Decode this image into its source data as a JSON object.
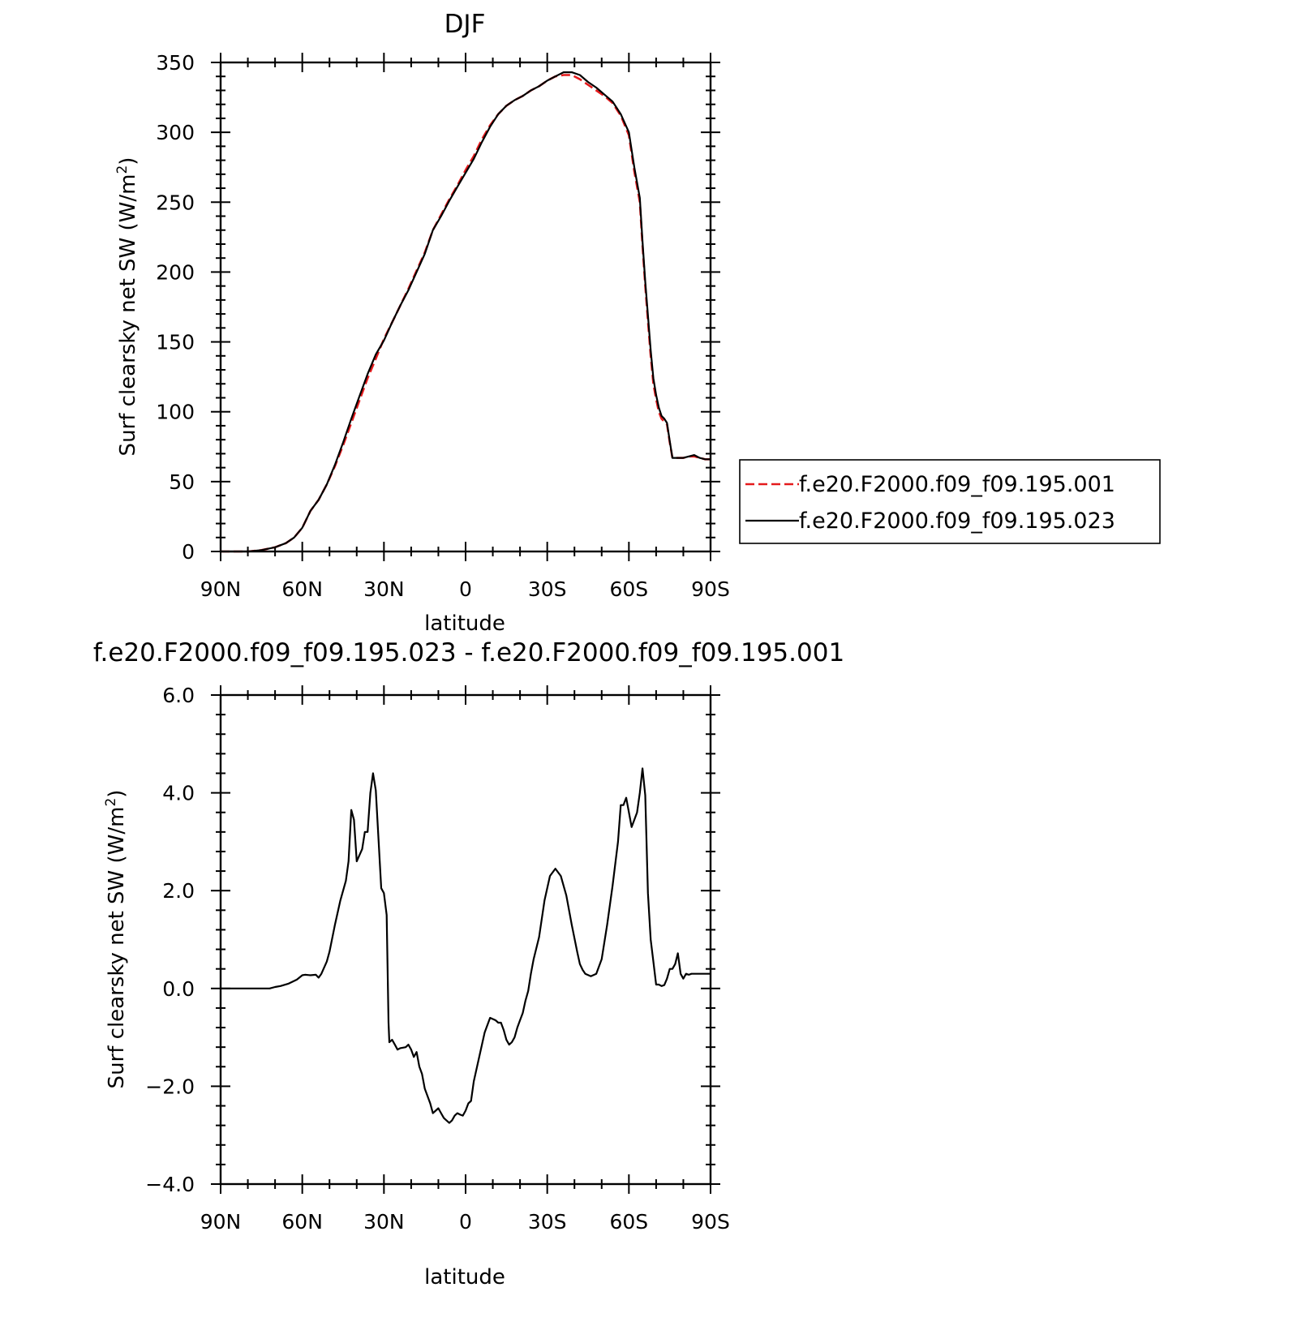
{
  "chart_data": [
    {
      "type": "line",
      "title": "DJF",
      "xlabel": "latitude",
      "ylabel": "Surf clearsky net SW (W/m",
      "ylabel_sup": "2",
      "ylabel_close": ")",
      "xlim": [
        90,
        -90
      ],
      "ylim": [
        0,
        350
      ],
      "xticks": [
        90,
        60,
        30,
        0,
        -30,
        -60,
        -90
      ],
      "xtick_labels": [
        "90N",
        "60N",
        "30N",
        "0",
        "30S",
        "60S",
        "90S"
      ],
      "yticks": [
        0,
        50,
        100,
        150,
        200,
        250,
        300,
        350
      ],
      "ytick_labels": [
        "0",
        "50",
        "100",
        "150",
        "200",
        "250",
        "300",
        "350"
      ],
      "legend": {
        "placement": "right"
      },
      "series": [
        {
          "name": "f.e20.F2000.f09_f09.195.001",
          "color": "#e41a1c",
          "dash": "dashed",
          "x": [
            90,
            80,
            75,
            70,
            66,
            63,
            60,
            57,
            54,
            51,
            48,
            45,
            42,
            39,
            36,
            33,
            30,
            27,
            24,
            21,
            18,
            15,
            12,
            9,
            6,
            3,
            0,
            -3,
            -6,
            -9,
            -12,
            -15,
            -18,
            -21,
            -24,
            -27,
            -30,
            -33,
            -36,
            -39,
            -42,
            -45,
            -48,
            -51,
            -54,
            -57,
            -60,
            -62,
            -64,
            -65,
            -66,
            -67,
            -68,
            -69,
            -70,
            -71,
            -72,
            -73,
            -74,
            -75,
            -76,
            -77,
            -78,
            -79,
            -80,
            -82,
            -84,
            -86,
            -88,
            -90
          ],
          "values": [
            0,
            0,
            1,
            3,
            6,
            10,
            17,
            29,
            37,
            48,
            61,
            76,
            92,
            108,
            124,
            138,
            152,
            164,
            176,
            188,
            201,
            214,
            230,
            241,
            252,
            262,
            273,
            283,
            295,
            305,
            313,
            319,
            323,
            326,
            330,
            333,
            337,
            340,
            341,
            341,
            338,
            334,
            330,
            326,
            321,
            312,
            298,
            272,
            250,
            219,
            190,
            165,
            140,
            120,
            109,
            100,
            95,
            93,
            91,
            78,
            67,
            67,
            67,
            67,
            67,
            68,
            68,
            67,
            66,
            66
          ]
        },
        {
          "name": "f.e20.F2000.f09_f09.195.023",
          "color": "#000000",
          "dash": "solid",
          "x": [
            90,
            80,
            75,
            70,
            66,
            63,
            60,
            57,
            54,
            51,
            48,
            45,
            42,
            39,
            36,
            33,
            30,
            27,
            24,
            21,
            18,
            15,
            12,
            9,
            6,
            3,
            0,
            -3,
            -6,
            -9,
            -12,
            -15,
            -18,
            -21,
            -24,
            -27,
            -30,
            -33,
            -36,
            -39,
            -42,
            -45,
            -48,
            -51,
            -54,
            -57,
            -60,
            -62,
            -64,
            -65,
            -66,
            -67,
            -68,
            -69,
            -70,
            -71,
            -72,
            -73,
            -74,
            -75,
            -76,
            -77,
            -78,
            -79,
            -80,
            -82,
            -84,
            -86,
            -88,
            -90
          ],
          "values": [
            0,
            0,
            1,
            3,
            6,
            10,
            17,
            29,
            37,
            48,
            62,
            78,
            95,
            111,
            127,
            141,
            151,
            164,
            176,
            187,
            200,
            213,
            230,
            240,
            251,
            261,
            271,
            281,
            293,
            304,
            313,
            319,
            323,
            326,
            330,
            333,
            337,
            340,
            343,
            343,
            341,
            336,
            332,
            327,
            322,
            313,
            300,
            275,
            253,
            222,
            193,
            169,
            144,
            124,
            112,
            103,
            97,
            95,
            92,
            79,
            67,
            67,
            67,
            67,
            67,
            68,
            69,
            67,
            66,
            66
          ]
        }
      ]
    },
    {
      "type": "line",
      "title": "f.e20.F2000.f09_f09.195.023 - f.e20.F2000.f09_f09.195.001",
      "xlabel": "latitude",
      "ylabel": "Surf clearsky net SW (W/m",
      "ylabel_sup": "2",
      "ylabel_close": ")",
      "xlim": [
        90,
        -90
      ],
      "ylim": [
        -4.0,
        6.0
      ],
      "xticks": [
        90,
        60,
        30,
        0,
        -30,
        -60,
        -90
      ],
      "xtick_labels": [
        "90N",
        "60N",
        "30N",
        "0",
        "30S",
        "60S",
        "90S"
      ],
      "yticks": [
        -4.0,
        -2.0,
        0.0,
        2.0,
        4.0,
        6.0
      ],
      "ytick_labels": [
        "−4.0",
        "−2.0",
        "0.0",
        "2.0",
        "4.0",
        "6.0"
      ],
      "series": [
        {
          "color": "#000000",
          "dash": "solid",
          "x": [
            90,
            80,
            72,
            70,
            68,
            65,
            62,
            60,
            59,
            57,
            55,
            54,
            53,
            51,
            50,
            48,
            46,
            44,
            43,
            42,
            41,
            40,
            38,
            37,
            36,
            35,
            34,
            33,
            31,
            30,
            29,
            28.3,
            28,
            27,
            26,
            25,
            24,
            22,
            21,
            20,
            19,
            18,
            17,
            16,
            15,
            13,
            12,
            11,
            10,
            9,
            8,
            7,
            6,
            5,
            4,
            3,
            2,
            1,
            0,
            -1,
            -2,
            -3,
            -5,
            -7,
            -9,
            -11,
            -12,
            -13,
            -14,
            -15,
            -16,
            -17,
            -18,
            -19,
            -20,
            -21,
            -22,
            -23,
            -24,
            -25,
            -27,
            -29,
            -31,
            -33,
            -35,
            -37,
            -39,
            -41,
            -42,
            -43,
            -44,
            -46,
            -48,
            -50,
            -52,
            -54,
            -56,
            -57,
            -58,
            -59,
            -61,
            -63,
            -64,
            -65,
            -66,
            -67,
            -68,
            -69,
            -70,
            -71,
            -72,
            -73,
            -74,
            -75,
            -76,
            -77,
            -78,
            -79,
            -80,
            -81,
            -82,
            -83,
            -84,
            -85,
            -86,
            -87,
            -88,
            -89,
            -90
          ],
          "values": [
            0,
            0,
            0,
            0.03,
            0.05,
            0.1,
            0.18,
            0.27,
            0.28,
            0.27,
            0.28,
            0.22,
            0.3,
            0.55,
            0.75,
            1.3,
            1.8,
            2.2,
            2.6,
            3.65,
            3.45,
            2.6,
            2.85,
            3.2,
            3.2,
            4.0,
            4.4,
            4.05,
            2.05,
            1.95,
            1.5,
            -0.7,
            -1.1,
            -1.05,
            -1.15,
            -1.25,
            -1.22,
            -1.2,
            -1.15,
            -1.25,
            -1.4,
            -1.3,
            -1.6,
            -1.75,
            -2.05,
            -2.35,
            -2.55,
            -2.5,
            -2.45,
            -2.55,
            -2.65,
            -2.7,
            -2.75,
            -2.7,
            -2.6,
            -2.55,
            -2.58,
            -2.6,
            -2.5,
            -2.35,
            -2.3,
            -1.9,
            -1.4,
            -0.9,
            -0.6,
            -0.65,
            -0.7,
            -0.7,
            -0.85,
            -1.05,
            -1.15,
            -1.1,
            -1.0,
            -0.8,
            -0.65,
            -0.5,
            -0.25,
            -0.05,
            0.3,
            0.6,
            1.05,
            1.8,
            2.3,
            2.45,
            2.3,
            1.9,
            1.3,
            0.75,
            0.5,
            0.38,
            0.3,
            0.25,
            0.3,
            0.6,
            1.3,
            2.1,
            3.0,
            3.75,
            3.75,
            3.9,
            3.3,
            3.6,
            4.0,
            4.5,
            3.95,
            1.95,
            1.0,
            0.55,
            0.08,
            0.08,
            0.05,
            0.07,
            0.2,
            0.4,
            0.4,
            0.5,
            0.72,
            0.3,
            0.2,
            0.3,
            0.28,
            0.3,
            0.3,
            0.3,
            0.3,
            0.3,
            0.3,
            0.3,
            0.3
          ]
        }
      ]
    }
  ]
}
